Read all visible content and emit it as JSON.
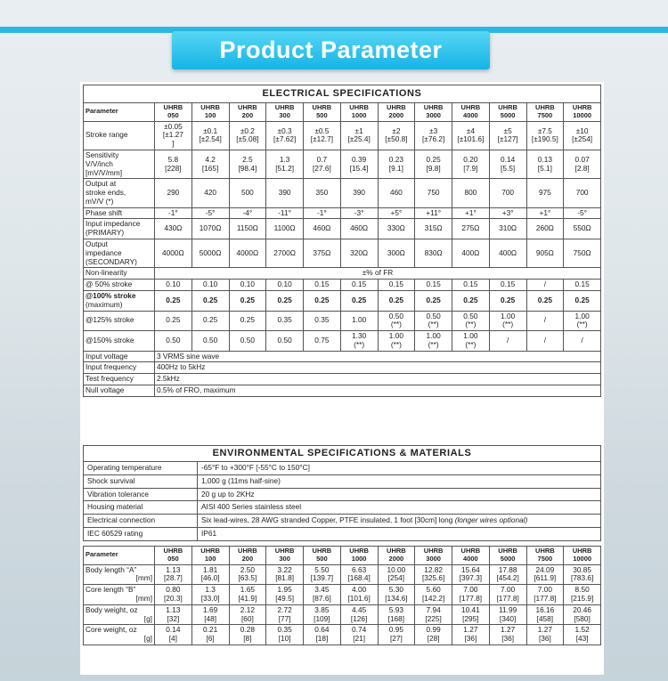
{
  "header": {
    "title": "Product Parameter"
  },
  "electrical": {
    "title": "ELECTRICAL  SPECIFICATIONS",
    "columns": [
      "Parameter",
      "UHRB\n050",
      "UHRB\n100",
      "UHRB\n200",
      "UHRB\n300",
      "UHRB\n500",
      "UHRB\n1000",
      "UHRB\n2000",
      "UHRB\n3000",
      "UHRB\n4000",
      "UHRB\n5000",
      "UHRB\n7500",
      "UHRB\n10000"
    ],
    "rows": [
      [
        "Stroke range",
        "±0.05\n[±1.27\n]",
        "±0.1\n[±2.54]",
        "±0.2\n[±5.08]",
        "±0.3\n[±7.62]",
        "±0.5\n[±12.7]",
        "±1\n[±25.4]",
        "±2\n[±50.8]",
        "±3\n[±76.2]",
        "±4\n[±101.6]",
        "±5\n[±127]",
        "±7.5\n[±190.5]",
        "±10\n[±254]"
      ],
      [
        "Sensitivity\n     V/V/inch\n     [mV/V/mm]",
        "5.8\n[228]",
        "4.2\n[165]",
        "2.5\n[98.4]",
        "1.3\n[51.2]",
        "0.7\n[27.6]",
        "0.39\n[15.4]",
        "0.23\n[9.1]",
        "0.25\n[9.8]",
        "0.20\n[7.9]",
        "0.14\n[5.5]",
        "0.13\n[5.1]",
        "0.07\n[2.8]"
      ],
      [
        "Output at\nstroke ends,\nmV/V (*)",
        "290",
        "420",
        "500",
        "390",
        "350",
        "390",
        "460",
        "750",
        "800",
        "700",
        "975",
        "700"
      ],
      [
        "Phase shift",
        "-1°",
        "-5°",
        "-4°",
        "-11°",
        "-1°",
        "-3°",
        "+5°",
        "+11°",
        "+1°",
        "+3°",
        "+1°",
        "-5°"
      ],
      [
        "Input impedance\n(PRIMARY)",
        "430Ω",
        "1070Ω",
        "1150Ω",
        "1100Ω",
        "460Ω",
        "460Ω",
        "330Ω",
        "315Ω",
        "275Ω",
        "310Ω",
        "260Ω",
        "550Ω"
      ],
      [
        "Output\nimpedance\n(SECONDARY)",
        "4000Ω",
        "5000Ω",
        "4000Ω",
        "2700Ω",
        "375Ω",
        "320Ω",
        "300Ω",
        "830Ω",
        "400Ω",
        "400Ω",
        "905Ω",
        "750Ω"
      ],
      [
        "Non-linearity",
        "±% of FR"
      ],
      [
        "@ 50% stroke",
        "0.10",
        "0.10",
        "0.10",
        "0.10",
        "0.15",
        "0.15",
        "0.15",
        "0.15",
        "0.15",
        "0.15",
        "/",
        "0.15"
      ],
      [
        "@100% stroke\n(maximum)",
        "0.25",
        "0.25",
        "0.25",
        "0.25",
        "0.25",
        "0.25",
        "0.25",
        "0.25",
        "0.25",
        "0.25",
        "0.25",
        "0.25"
      ],
      [
        "@125% stroke",
        "0.25",
        "0.25",
        "0.25",
        "0.35",
        "0.35",
        "1.00",
        "0.50\n(**)",
        "0.50\n(**)",
        "0.50\n(**)",
        "1.00\n(**)",
        "/",
        "1.00\n(**)"
      ],
      [
        "@150% stroke",
        "0.50",
        "0.50",
        "0.50",
        "0.50",
        "0.75",
        "1.30\n(**)",
        "1.00\n(**)",
        "1.00\n(**)",
        "1.00\n(**)",
        "/",
        "/",
        "/"
      ],
      [
        "Input voltage",
        "3 VRMS sine wave"
      ],
      [
        "Input frequency",
        "400Hz to 5kHz"
      ],
      [
        "Test frequency",
        "2.5kHz"
      ],
      [
        "Null voltage",
        "0.5% of FRO, maximum"
      ]
    ]
  },
  "environmental": {
    "title": "ENVIRONMENTAL  SPECIFICATIONS  &  MATERIALS",
    "rows": [
      [
        "Operating temperature",
        [
          "-65°F to +300°F [-55°C to 150°C]"
        ]
      ],
      [
        "Shock survival",
        [
          "1,000 g (11ms half-sine)"
        ]
      ],
      [
        "Vibration tolerance",
        [
          "20 g up to 2KHz"
        ]
      ],
      [
        "Housing material",
        [
          "AISI 400 Series stainless steel"
        ]
      ],
      [
        "Electrical connection",
        [
          "Six lead-wires, 28 AWG stranded Copper, PTFE insulated, 1 foot [30cm] long ",
          "(longer wires optional)"
        ]
      ],
      [
        "IEC 60529 rating",
        [
          "IP61"
        ]
      ]
    ]
  },
  "dimensions": {
    "columns": [
      "Parameter",
      "UHRB\n050",
      "UHRB\n100",
      "UHRB\n200",
      "UHRB\n300",
      "UHRB\n500",
      "UHRB\n1000",
      "UHRB\n2000",
      "UHRB\n3000",
      "UHRB\n4000",
      "UHRB\n5000",
      "UHRB\n7500",
      "UHRB\n10000"
    ],
    "rows": [
      [
        [
          "Body length “A”",
          "[mm]"
        ],
        "1.13\n[28.7]",
        "1.81\n[46.0]",
        "2.50\n[63.5]",
        "3.22\n[81.8]",
        "5.50\n[139.7]",
        "6.63\n[168.4]",
        "10.00\n[254]",
        "12.82\n[325.6]",
        "15.64\n[397.3]",
        "17.88\n[454.2]",
        "24.09\n[611.9]",
        "30.85\n[783.6]"
      ],
      [
        [
          "Core length “B”",
          "[mm]"
        ],
        "0.80\n[20.3]",
        "1.3\n[33.0]",
        "1.65\n[41.9]",
        "1.95\n[49.5]",
        "3.45\n[87.6]",
        "4.00\n[101.6]",
        "5.30\n[134.6]",
        "5.60\n[142.2]",
        "7.00\n[177.8]",
        "7.00\n[177.8]",
        "7.00\n[177.8]",
        "8.50\n[215.9]"
      ],
      [
        [
          "Body weight, oz",
          "[g]"
        ],
        "1.13\n[32]",
        "1.69\n[48]",
        "2.12\n[60]",
        "2.72\n[77]",
        "3.85\n[109]",
        "4.45\n[126]",
        "5.93\n[168]",
        "7.94\n[225]",
        "10.41\n[295]",
        "11.99\n[340]",
        "16.16\n[458]",
        "20.46\n[580]"
      ],
      [
        [
          "Core weight, oz",
          "[g]"
        ],
        "0.14\n[4]",
        "0.21\n[6]",
        "0.28\n[8]",
        "0.35\n[10]",
        "0.64\n[18]",
        "0.74\n[21]",
        "0.95\n[27]",
        "0.99\n[28]",
        "1.27\n[36]",
        "1.27\n[36]",
        "1.27\n[36]",
        "1.52\n[43]"
      ]
    ]
  }
}
